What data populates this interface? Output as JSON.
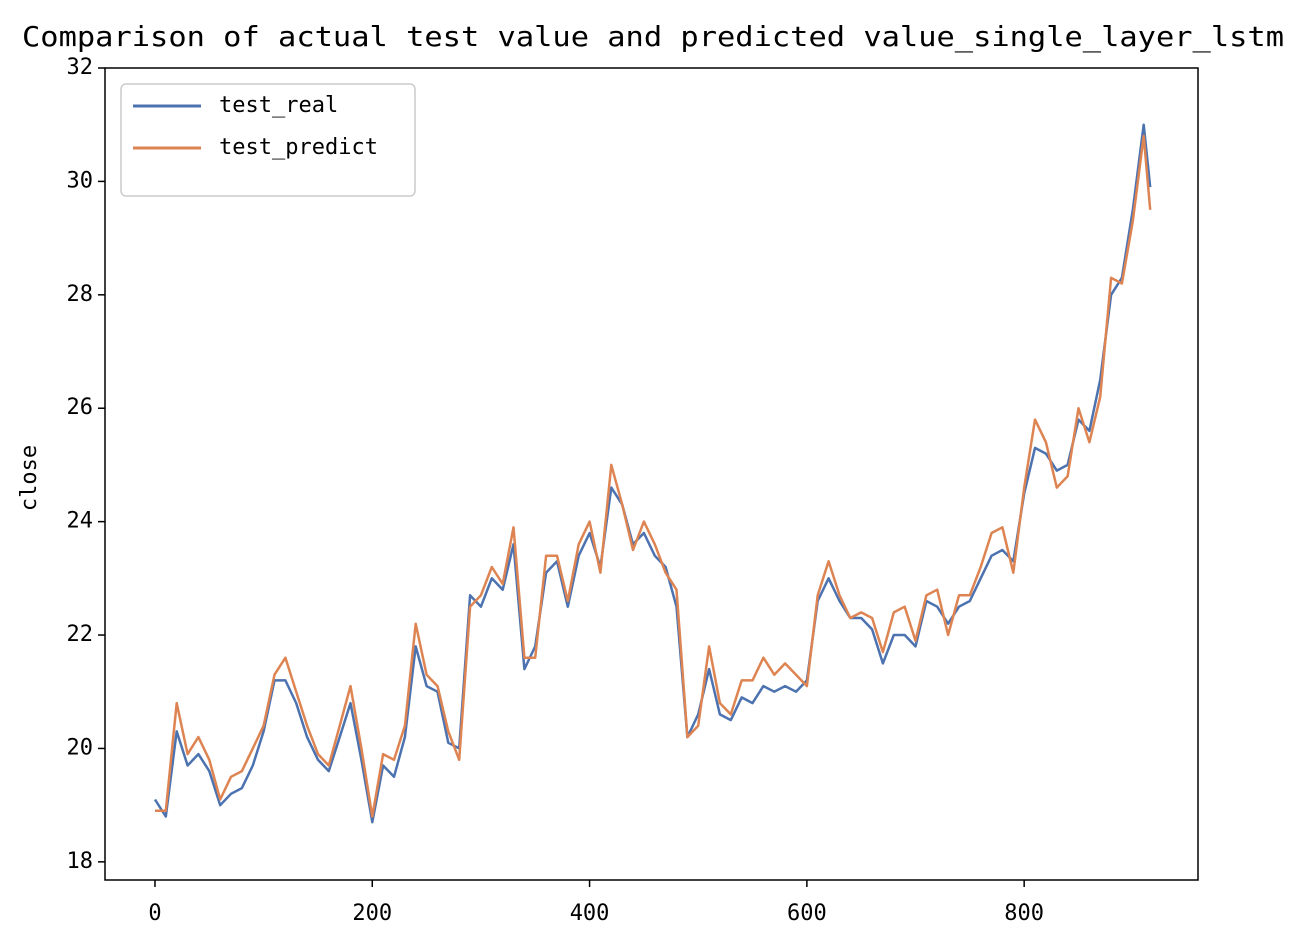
{
  "chart_data": {
    "type": "line",
    "title": "Comparison of actual test value and predicted value_single_layer_lstm",
    "y_label": "close",
    "x": [
      0,
      10,
      20,
      30,
      40,
      50,
      60,
      70,
      80,
      90,
      100,
      110,
      120,
      130,
      140,
      150,
      160,
      170,
      180,
      190,
      200,
      210,
      220,
      230,
      240,
      250,
      260,
      270,
      280,
      290,
      300,
      310,
      320,
      330,
      340,
      350,
      360,
      370,
      380,
      390,
      400,
      410,
      420,
      430,
      440,
      450,
      460,
      470,
      480,
      490,
      500,
      510,
      520,
      530,
      540,
      550,
      560,
      570,
      580,
      590,
      600,
      610,
      620,
      630,
      640,
      650,
      660,
      670,
      680,
      690,
      700,
      710,
      720,
      730,
      740,
      750,
      760,
      770,
      780,
      790,
      800,
      810,
      820,
      830,
      840,
      850,
      860,
      870,
      880,
      890,
      900,
      910,
      916
    ],
    "series": [
      {
        "name": "test_real",
        "color": "#4c72b0",
        "values": [
          19.1,
          18.8,
          20.3,
          19.7,
          19.9,
          19.6,
          19.0,
          19.2,
          19.3,
          19.7,
          20.3,
          21.2,
          21.2,
          20.8,
          20.2,
          19.8,
          19.6,
          20.2,
          20.8,
          19.8,
          18.7,
          19.7,
          19.5,
          20.2,
          21.8,
          21.1,
          21.0,
          20.1,
          20.0,
          22.7,
          22.5,
          23.0,
          22.8,
          23.6,
          21.4,
          21.8,
          23.1,
          23.3,
          22.5,
          23.4,
          23.8,
          23.2,
          24.6,
          24.3,
          23.6,
          23.8,
          23.4,
          23.2,
          22.5,
          20.2,
          20.6,
          21.4,
          20.6,
          20.5,
          20.9,
          20.8,
          21.1,
          21.0,
          21.1,
          21.0,
          21.2,
          22.6,
          23.0,
          22.6,
          22.3,
          22.3,
          22.1,
          21.5,
          22.0,
          22.0,
          21.8,
          22.6,
          22.5,
          22.2,
          22.5,
          22.6,
          23.0,
          23.4,
          23.5,
          23.3,
          24.5,
          25.3,
          25.2,
          24.9,
          25.0,
          25.8,
          25.6,
          26.5,
          28.0,
          28.3,
          29.5,
          31.0,
          29.9
        ]
      },
      {
        "name": "test_predict",
        "color": "#dd8452",
        "values": [
          18.9,
          18.9,
          20.8,
          19.9,
          20.2,
          19.8,
          19.1,
          19.5,
          19.6,
          20.0,
          20.4,
          21.3,
          21.6,
          21.0,
          20.4,
          19.9,
          19.7,
          20.4,
          21.1,
          20.0,
          18.8,
          19.9,
          19.8,
          20.4,
          22.2,
          21.3,
          21.1,
          20.3,
          19.8,
          22.5,
          22.7,
          23.2,
          22.9,
          23.9,
          21.6,
          21.6,
          23.4,
          23.4,
          22.6,
          23.6,
          24.0,
          23.1,
          25.0,
          24.3,
          23.5,
          24.0,
          23.6,
          23.1,
          22.8,
          20.2,
          20.4,
          21.8,
          20.8,
          20.6,
          21.2,
          21.2,
          21.6,
          21.3,
          21.5,
          21.3,
          21.1,
          22.7,
          23.3,
          22.7,
          22.3,
          22.4,
          22.3,
          21.7,
          22.4,
          22.5,
          21.9,
          22.7,
          22.8,
          22.0,
          22.7,
          22.7,
          23.2,
          23.8,
          23.9,
          23.1,
          24.6,
          25.8,
          25.4,
          24.6,
          24.8,
          26.0,
          25.4,
          26.2,
          28.3,
          28.2,
          29.3,
          30.8,
          29.5
        ]
      }
    ],
    "xlim": [
      -46,
      960
    ],
    "xticks": [
      0,
      200,
      400,
      600,
      800
    ],
    "ylim": [
      17.68,
      32
    ],
    "yticks": [
      18,
      20,
      22,
      24,
      26,
      28,
      30,
      32
    ],
    "legend": "upper left"
  }
}
